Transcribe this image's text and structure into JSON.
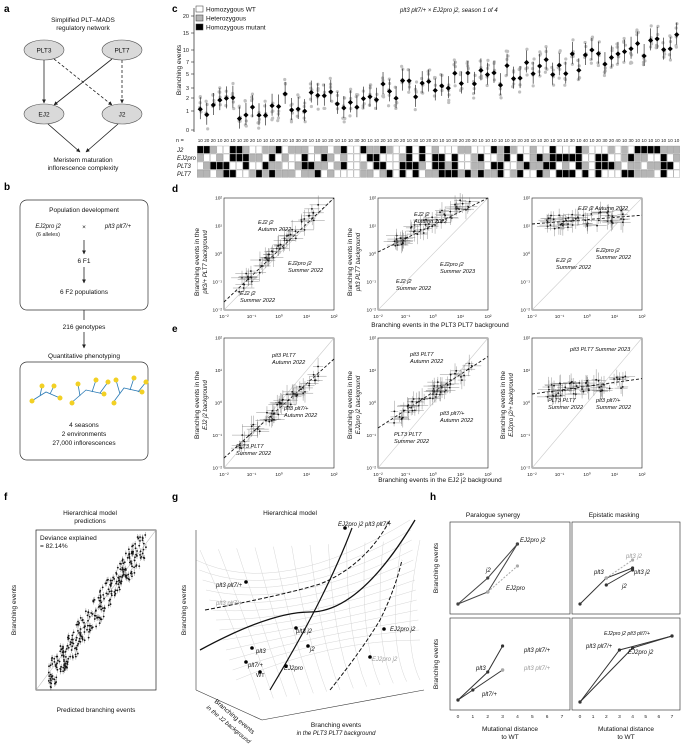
{
  "panel_labels": {
    "a": "a",
    "b": "b",
    "c": "c",
    "d": "d",
    "e": "e",
    "f": "f",
    "g": "g",
    "h": "h"
  },
  "panel_a": {
    "title_line1": "Simplified PLT–MADS",
    "title_line2": "regulatory network",
    "nodes": {
      "plt3": "PLT3",
      "plt7": "PLT7",
      "ej2": "EJ2",
      "j2": "J2"
    },
    "footer_line1": "Meristem maturation",
    "footer_line2": "inflorescence complexity"
  },
  "panel_b": {
    "box1_title": "Population development",
    "cross_left": "EJ2pro j2",
    "cross_left_sub": "(6 alleles)",
    "cross_symbol": "×",
    "cross_right": "plt3 plt7/+",
    "f1": "6 F1",
    "f2": "6 F2 populations",
    "genotypes": "216 genotypes",
    "box2_title": "Quantitative phenotyping",
    "stat1": "4 seasons",
    "stat2": "2 environments",
    "stat3": "27,000 inflorescences"
  },
  "panel_c": {
    "legend": [
      "Homozygous WT",
      "Heterozygous",
      "Homozygous mutant"
    ],
    "legend_colors": [
      "#ffffff",
      "#b5b5b5",
      "#000000"
    ],
    "title": "plt3 plt7/+ × EJ2pro j2, season 1 of 4",
    "ylabel": "Branching events",
    "yticks": [
      "0",
      "1",
      "2",
      "3",
      "5",
      "7",
      "10",
      "15",
      "20"
    ],
    "n_label": "n =",
    "n_values": [
      "10",
      "20",
      "20",
      "10",
      "20",
      "10",
      "10",
      "20",
      "20",
      "10",
      "10",
      "10",
      "20",
      "20",
      "10",
      "30",
      "20",
      "10",
      "10",
      "10",
      "20",
      "10",
      "10",
      "10",
      "30",
      "30",
      "10",
      "10",
      "20",
      "10",
      "20",
      "20",
      "10",
      "30",
      "10",
      "20",
      "20",
      "10",
      "10",
      "20",
      "20",
      "20",
      "30",
      "10",
      "10",
      "10",
      "10",
      "10",
      "10",
      "20",
      "20",
      "10",
      "10",
      "20",
      "10",
      "10",
      "10",
      "30",
      "10",
      "40",
      "10",
      "20",
      "30",
      "20",
      "40",
      "10",
      "30",
      "10",
      "10",
      "10",
      "10",
      "10",
      "10",
      "10"
    ],
    "row_labels": [
      "J2",
      "EJ2pro",
      "PLT3",
      "PLT7"
    ]
  },
  "panel_d": {
    "xlabel": "Branching events in the PLT3 PLT7 background",
    "plots": [
      {
        "ylabel1": "Branching events in the",
        "ylabel2": "plt3/+ PLT7 background",
        "ann": [
          "EJ2 j2",
          "Autumn 2022",
          "EJ2pro j2",
          "Summer 2022",
          "EJ2 j2",
          "Summer 2022"
        ]
      },
      {
        "ylabel1": "Branching events in the",
        "ylabel2": "plt3 PLT7 background",
        "ann": [
          "EJ2 j2",
          "Autumn 2022",
          "EJ2pro j2",
          "Summer 2023",
          "EJ2 j2",
          "Summer 2022"
        ]
      },
      {
        "ylabel1": "",
        "ylabel2": "",
        "ann": [
          "EJ2 j2 Autumn 2022",
          "EJ2pro j2",
          "Summer 2022",
          "EJ2 j2",
          "Summer 2022"
        ]
      }
    ],
    "ticks": [
      "10⁻²",
      "10⁻¹",
      "10⁰",
      "10¹",
      "10²"
    ]
  },
  "panel_e": {
    "xlabel": "Branching events in the EJ2 j2 background",
    "plots": [
      {
        "ylabel1": "Branching events in the",
        "ylabel2": "EJ2 j2 background",
        "ann": [
          "plt3 PLT7",
          "Autumn 2022",
          "plt3 plt7/+",
          "Autumn 2022",
          "PLT3 PLT7",
          "Summer 2022"
        ]
      },
      {
        "ylabel1": "Branching events in the",
        "ylabel2": "EJ2pro j2 background",
        "ann": [
          "plt3 PLT7",
          "Autumn 2022",
          "plt3 plt7/+",
          "Autumn 2022",
          "PLT3 PLT7",
          "Summer 2022"
        ]
      },
      {
        "ylabel1": "Branching events in the",
        "ylabel2": "EJ2pro j2/+ background",
        "ann": [
          "plt3 PLT7 Summer 2023",
          "plt3 plt7/+",
          "Summer 2022",
          "PLT3 PLT7",
          "Summer 2022"
        ]
      }
    ]
  },
  "panel_f": {
    "title1": "Hierarchical model",
    "title2": "predictions",
    "deviance": "Deviance explained",
    "deviance_val": "= 82.14%",
    "xlabel": "Predicted branching events",
    "ylabel": "Branching events"
  },
  "panel_g": {
    "title": "Hierarchical model",
    "zlabel": "Branching events",
    "ylabel1": "Branching events",
    "ylabel2": "in the J2 background",
    "xlabel1": "Branching events",
    "xlabel2": "in the PLT3 PLT7 background",
    "labels": [
      "EJ2pro j2 plt3 plt7/+",
      "plt3 plt7/+",
      "plt3 plt7/+",
      "EJ2pro j2",
      "plt3 j2",
      "plt3",
      "j2",
      "plt7/+",
      "WT",
      "EJ2pro",
      "EJ2pro j2"
    ]
  },
  "panel_h": {
    "col1": "Paralogue synergy",
    "col2": "Epistatic masking",
    "ylabel": "Branching events",
    "xlabel1": "Mutational distance",
    "xlabel2": "to WT",
    "xticks": [
      "0",
      "1",
      "2",
      "3",
      "4",
      "5",
      "6",
      "7"
    ],
    "tl": [
      "EJ2pro j2",
      "j2",
      "EJ2pro"
    ],
    "tr": [
      "plt3 j2",
      "plt3 j2",
      "plt3",
      "j2"
    ],
    "bl": [
      "plt3 plt7/+",
      "plt3 plt7/+",
      "plt3",
      "plt7/+"
    ],
    "br": [
      "EJ2pro j2 plt3 plt7/+",
      "plt3 plt7/+",
      "EJ2pro j2"
    ]
  }
}
